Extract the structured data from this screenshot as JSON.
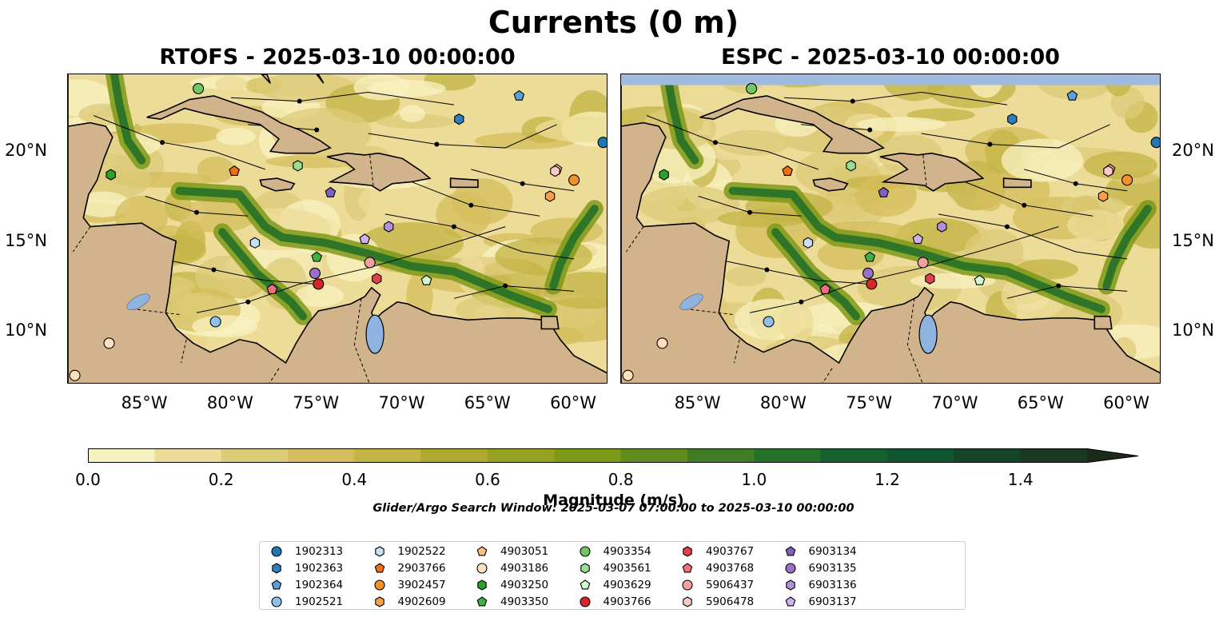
{
  "title": "Currents (0 m)",
  "panels": [
    {
      "id": "rtofs",
      "title": "RTOFS - 2025-03-10 00:00:00"
    },
    {
      "id": "espc",
      "title": "ESPC - 2025-03-10 00:00:00"
    }
  ],
  "axes": {
    "lon_ticks": [
      "85°W",
      "80°W",
      "75°W",
      "70°W",
      "65°W",
      "60°W"
    ],
    "lat_ticks": [
      "20°N",
      "15°N",
      "10°N"
    ],
    "lon_range": [
      -89.5,
      -58.0
    ],
    "lat_range": [
      7.0,
      24.3
    ]
  },
  "colorbar": {
    "label": "Magnitude (m/s)",
    "ticks": [
      "0.0",
      "0.2",
      "0.4",
      "0.6",
      "0.8",
      "1.0",
      "1.2",
      "1.4"
    ],
    "range": [
      0.0,
      1.5
    ],
    "extend": "max",
    "colors": [
      "#f8f2c0",
      "#ecdc98",
      "#decb7a",
      "#d4bd5c",
      "#c4b445",
      "#aeaa30",
      "#96a220",
      "#7c9918",
      "#5f8c1c",
      "#3f7c22",
      "#237028",
      "#12612e",
      "#0f5530",
      "#154528",
      "#1b3820",
      "#1a2a18"
    ]
  },
  "search_window": "Glider/Argo Search Window: 2025-03-07 07:00:00 to 2025-03-10 00:00:00",
  "colors": {
    "land": "#d2b48c",
    "lakes": "#8fb3e0",
    "espc_missing_band": "#9fbce0"
  },
  "legend": [
    {
      "id": "1902313",
      "marker": "circle",
      "color": "#1f77b4"
    },
    {
      "id": "1902363",
      "marker": "hexagon",
      "color": "#2f7fc0"
    },
    {
      "id": "1902364",
      "marker": "pentagon",
      "color": "#5aa0d8"
    },
    {
      "id": "1902521",
      "marker": "circle",
      "color": "#8ec0e8"
    },
    {
      "id": "1902522",
      "marker": "hexagon",
      "color": "#c8e0f8"
    },
    {
      "id": "2903766",
      "marker": "pentagon",
      "color": "#f07010"
    },
    {
      "id": "3902457",
      "marker": "circle",
      "color": "#f5902a"
    },
    {
      "id": "4902609",
      "marker": "hexagon",
      "color": "#f8a048"
    },
    {
      "id": "4903051",
      "marker": "pentagon",
      "color": "#fcc080"
    },
    {
      "id": "4903186",
      "marker": "circle",
      "color": "#fde0c0"
    },
    {
      "id": "4903250",
      "marker": "hexagon",
      "color": "#2ca02c"
    },
    {
      "id": "4903350",
      "marker": "pentagon",
      "color": "#40b040"
    },
    {
      "id": "4903354",
      "marker": "circle",
      "color": "#70c860"
    },
    {
      "id": "4903561",
      "marker": "hexagon",
      "color": "#98e090"
    },
    {
      "id": "4903629",
      "marker": "pentagon",
      "color": "#d0fcd0"
    },
    {
      "id": "4903766",
      "marker": "circle",
      "color": "#d62728"
    },
    {
      "id": "4903767",
      "marker": "hexagon",
      "color": "#e04048"
    },
    {
      "id": "4903768",
      "marker": "pentagon",
      "color": "#f07080"
    },
    {
      "id": "5906437",
      "marker": "circle",
      "color": "#f5a0a0"
    },
    {
      "id": "5906478",
      "marker": "hexagon",
      "color": "#fcc8c8"
    },
    {
      "id": "6903134",
      "marker": "pentagon",
      "color": "#8060c0"
    },
    {
      "id": "6903135",
      "marker": "circle",
      "color": "#9a70c8"
    },
    {
      "id": "6903136",
      "marker": "hexagon",
      "color": "#b090d8"
    },
    {
      "id": "6903137",
      "marker": "pentagon",
      "color": "#d0b0f0"
    }
  ],
  "floats": [
    {
      "id": "1902313",
      "lon": -58.3,
      "lat": 20.5
    },
    {
      "id": "1902363",
      "lon": -66.7,
      "lat": 21.8
    },
    {
      "id": "1902364",
      "lon": -63.2,
      "lat": 23.1
    },
    {
      "id": "1902521",
      "lon": -80.9,
      "lat": 10.5
    },
    {
      "id": "1902522",
      "lon": -78.6,
      "lat": 14.9
    },
    {
      "id": "2903766",
      "lon": -79.8,
      "lat": 18.9
    },
    {
      "id": "3902457",
      "lon": -60.0,
      "lat": 18.4
    },
    {
      "id": "4902609",
      "lon": -61.4,
      "lat": 17.5
    },
    {
      "id": "4903051",
      "lon": -61.0,
      "lat": 19.0
    },
    {
      "id": "4903186",
      "lon": -87.1,
      "lat": 9.3
    },
    {
      "id": "4903250",
      "lon": -87.0,
      "lat": 18.7
    },
    {
      "id": "4903350",
      "lon": -75.0,
      "lat": 14.1
    },
    {
      "id": "4903354",
      "lon": -81.9,
      "lat": 23.5
    },
    {
      "id": "4903561",
      "lon": -76.1,
      "lat": 19.2
    },
    {
      "id": "4903629",
      "lon": -68.6,
      "lat": 12.8
    },
    {
      "id": "4903766",
      "lon": -74.9,
      "lat": 12.6
    },
    {
      "id": "4903767",
      "lon": -71.5,
      "lat": 12.9
    },
    {
      "id": "4903768",
      "lon": -77.6,
      "lat": 12.3
    },
    {
      "id": "5906437",
      "lon": -71.9,
      "lat": 13.8
    },
    {
      "id": "5906478",
      "lon": -61.1,
      "lat": 18.9
    },
    {
      "id": "6903134",
      "lon": -74.2,
      "lat": 17.7
    },
    {
      "id": "6903135",
      "lon": -75.1,
      "lat": 13.2
    },
    {
      "id": "6903136",
      "lon": -70.8,
      "lat": 15.8
    },
    {
      "id": "6903137",
      "lon": -72.2,
      "lat": 15.1
    },
    {
      "id": "4903186",
      "lon": -89.1,
      "lat": 7.5
    }
  ]
}
